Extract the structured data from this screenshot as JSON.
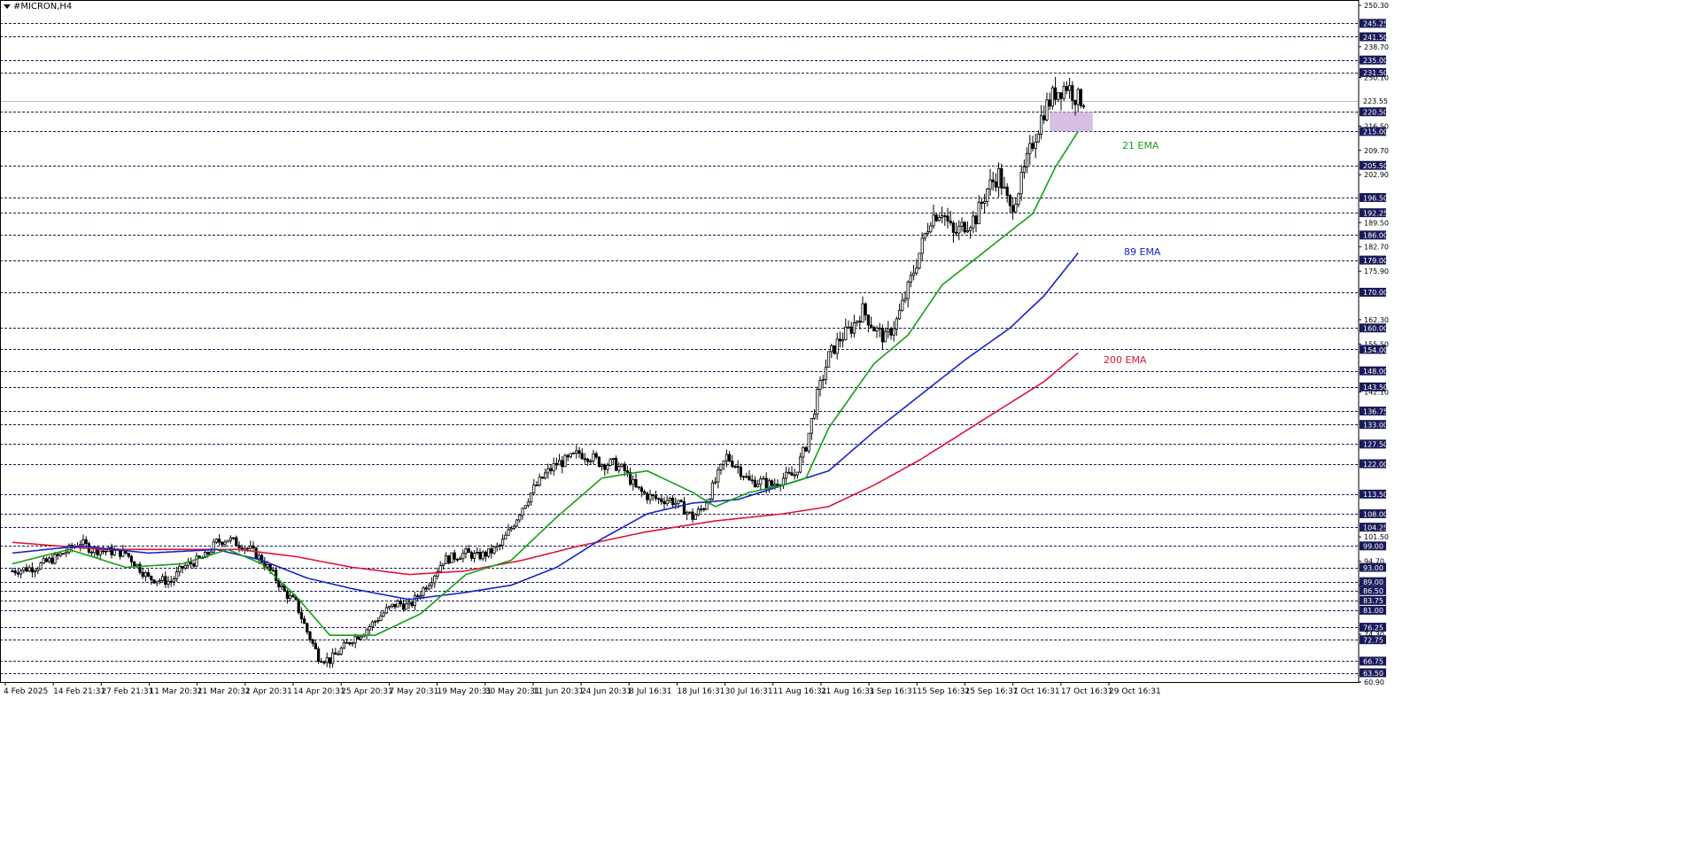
{
  "window": {
    "symbol_title": "#MICRON,H4"
  },
  "colors": {
    "background": "#ffffff",
    "grid": "#1a1a55",
    "candle": "#000000",
    "ema21": "#14a014",
    "ema89": "#1423c8",
    "ema200": "#dc143c",
    "price_tag_bg": "#1a1a5a",
    "price_tag_text": "#ffffff",
    "zone": "#c8a9d8",
    "current_price_line": "#c0c0c0"
  },
  "chart_data": {
    "type": "candlestick",
    "symbol": "#MICRON",
    "timeframe": "H4",
    "ylim": [
      60.9,
      250.3
    ],
    "current_price": 223.55,
    "y_tick_labels": [
      250.3,
      238.7,
      230.1,
      216.5,
      209.7,
      202.9,
      189.5,
      182.7,
      175.9,
      162.3,
      155.5,
      142.1,
      101.5,
      94.7,
      87.9,
      74.3,
      60.9
    ],
    "horizontal_levels": [
      245.25,
      241.5,
      235.0,
      231.5,
      220.5,
      215.0,
      205.5,
      196.5,
      192.25,
      186.0,
      179.0,
      170.0,
      160.0,
      154.0,
      148.0,
      143.5,
      136.75,
      133.0,
      127.5,
      122.0,
      113.5,
      108.0,
      104.25,
      99.0,
      93.0,
      89.0,
      86.5,
      83.75,
      81.0,
      76.25,
      72.75,
      66.75,
      63.5
    ],
    "x_tick_labels": [
      "4 Feb 2025",
      "14 Feb 21:31",
      "27 Feb 21:31",
      "11 Mar 20:31",
      "21 Mar 20:31",
      "2 Apr 20:31",
      "14 Apr 20:31",
      "25 Apr 20:31",
      "7 May 20:31",
      "19 May 20:31",
      "30 May 20:31",
      "11 Jun 20:31",
      "24 Jun 20:31",
      "8 Jul 16:31",
      "18 Jul 16:31",
      "30 Jul 16:31",
      "11 Aug 16:31",
      "21 Aug 16:31",
      "3 Sep 16:31",
      "15 Sep 16:31",
      "25 Sep 16:31",
      "7 Oct 16:31",
      "17 Oct 16:31",
      "29 Oct 16:31"
    ],
    "price_anchors": [
      [
        0,
        92
      ],
      [
        2,
        93
      ],
      [
        4,
        96
      ],
      [
        6,
        100
      ],
      [
        7,
        98
      ],
      [
        10,
        97
      ],
      [
        12,
        90
      ],
      [
        14,
        89
      ],
      [
        15,
        93
      ],
      [
        17,
        96
      ],
      [
        18,
        100
      ],
      [
        19,
        101
      ],
      [
        21,
        98
      ],
      [
        22,
        95
      ],
      [
        23,
        91
      ],
      [
        24,
        86
      ],
      [
        25,
        83
      ],
      [
        26,
        75
      ],
      [
        27,
        68
      ],
      [
        28,
        67
      ],
      [
        29,
        70
      ],
      [
        30,
        73
      ],
      [
        31,
        75
      ],
      [
        32,
        78
      ],
      [
        33,
        81
      ],
      [
        34,
        83
      ],
      [
        35,
        82
      ],
      [
        36,
        86
      ],
      [
        37,
        90
      ],
      [
        38,
        95
      ],
      [
        39,
        96
      ],
      [
        40,
        97
      ],
      [
        41,
        96
      ],
      [
        42,
        97
      ],
      [
        43,
        99
      ],
      [
        44,
        104
      ],
      [
        45,
        110
      ],
      [
        46,
        115
      ],
      [
        47,
        119
      ],
      [
        48,
        122
      ],
      [
        49,
        123
      ],
      [
        50,
        125
      ],
      [
        51,
        124
      ],
      [
        52,
        122
      ],
      [
        53,
        122
      ],
      [
        54,
        120
      ],
      [
        55,
        115
      ],
      [
        56,
        113
      ],
      [
        57,
        112
      ],
      [
        58,
        112
      ],
      [
        59,
        110
      ],
      [
        60,
        107
      ],
      [
        61,
        110
      ],
      [
        62,
        117
      ],
      [
        63,
        124
      ],
      [
        64,
        121
      ],
      [
        65,
        117
      ],
      [
        66,
        117
      ],
      [
        67,
        116
      ],
      [
        68,
        118
      ],
      [
        69,
        119
      ],
      [
        70,
        127
      ],
      [
        71,
        141
      ],
      [
        72,
        152
      ],
      [
        73,
        157
      ],
      [
        74,
        160
      ],
      [
        75,
        165
      ],
      [
        76,
        160
      ],
      [
        77,
        157
      ],
      [
        78,
        162
      ],
      [
        79,
        171
      ],
      [
        80,
        181
      ],
      [
        81,
        191
      ],
      [
        82,
        193
      ],
      [
        83,
        186
      ],
      [
        84,
        189
      ],
      [
        85,
        191
      ],
      [
        86,
        199
      ],
      [
        87,
        203
      ],
      [
        88,
        193
      ],
      [
        89,
        201
      ],
      [
        90,
        212
      ],
      [
        91,
        221
      ],
      [
        92,
        226
      ],
      [
        93,
        228
      ],
      [
        94,
        224
      ]
    ],
    "indicators": [
      {
        "name": "21 EMA",
        "period": 21,
        "end_value": 215,
        "color": "#14a014"
      },
      {
        "name": "89 EMA",
        "period": 89,
        "end_value": 181,
        "color": "#1423c8"
      },
      {
        "name": "200 EMA",
        "period": 200,
        "end_value": 153,
        "color": "#dc143c"
      }
    ],
    "ema21_anchors": [
      [
        0,
        94
      ],
      [
        5,
        98
      ],
      [
        10,
        93
      ],
      [
        15,
        94
      ],
      [
        19,
        98
      ],
      [
        22,
        94
      ],
      [
        25,
        85
      ],
      [
        28,
        74
      ],
      [
        32,
        74
      ],
      [
        36,
        80
      ],
      [
        40,
        91
      ],
      [
        44,
        95
      ],
      [
        48,
        107
      ],
      [
        52,
        118
      ],
      [
        56,
        120
      ],
      [
        60,
        114
      ],
      [
        62,
        110
      ],
      [
        65,
        114
      ],
      [
        68,
        116
      ],
      [
        70,
        118
      ],
      [
        72,
        132
      ],
      [
        76,
        150
      ],
      [
        79,
        158
      ],
      [
        82,
        172
      ],
      [
        86,
        182
      ],
      [
        90,
        192
      ],
      [
        92,
        205
      ],
      [
        94,
        215
      ]
    ],
    "ema89_anchors": [
      [
        0,
        97
      ],
      [
        6,
        99
      ],
      [
        12,
        97
      ],
      [
        18,
        98
      ],
      [
        22,
        95
      ],
      [
        26,
        90
      ],
      [
        30,
        87
      ],
      [
        35,
        84
      ],
      [
        40,
        86
      ],
      [
        44,
        88
      ],
      [
        48,
        93
      ],
      [
        52,
        101
      ],
      [
        56,
        108
      ],
      [
        60,
        111
      ],
      [
        64,
        112
      ],
      [
        68,
        116
      ],
      [
        72,
        120
      ],
      [
        76,
        131
      ],
      [
        80,
        141
      ],
      [
        84,
        151
      ],
      [
        88,
        160
      ],
      [
        91,
        169
      ],
      [
        94,
        181
      ]
    ],
    "ema200_anchors": [
      [
        0,
        100
      ],
      [
        8,
        98
      ],
      [
        15,
        98
      ],
      [
        20,
        98
      ],
      [
        25,
        96
      ],
      [
        30,
        93
      ],
      [
        35,
        91
      ],
      [
        40,
        92
      ],
      [
        45,
        95
      ],
      [
        50,
        99
      ],
      [
        56,
        103
      ],
      [
        62,
        106
      ],
      [
        68,
        108
      ],
      [
        72,
        110
      ],
      [
        76,
        116
      ],
      [
        80,
        123
      ],
      [
        84,
        131
      ],
      [
        88,
        139
      ],
      [
        91,
        145
      ],
      [
        94,
        153
      ]
    ],
    "highlight_zone": {
      "x_from": 91.5,
      "x_to": 95.3,
      "y_from": 215.0,
      "y_to": 220.5
    }
  }
}
